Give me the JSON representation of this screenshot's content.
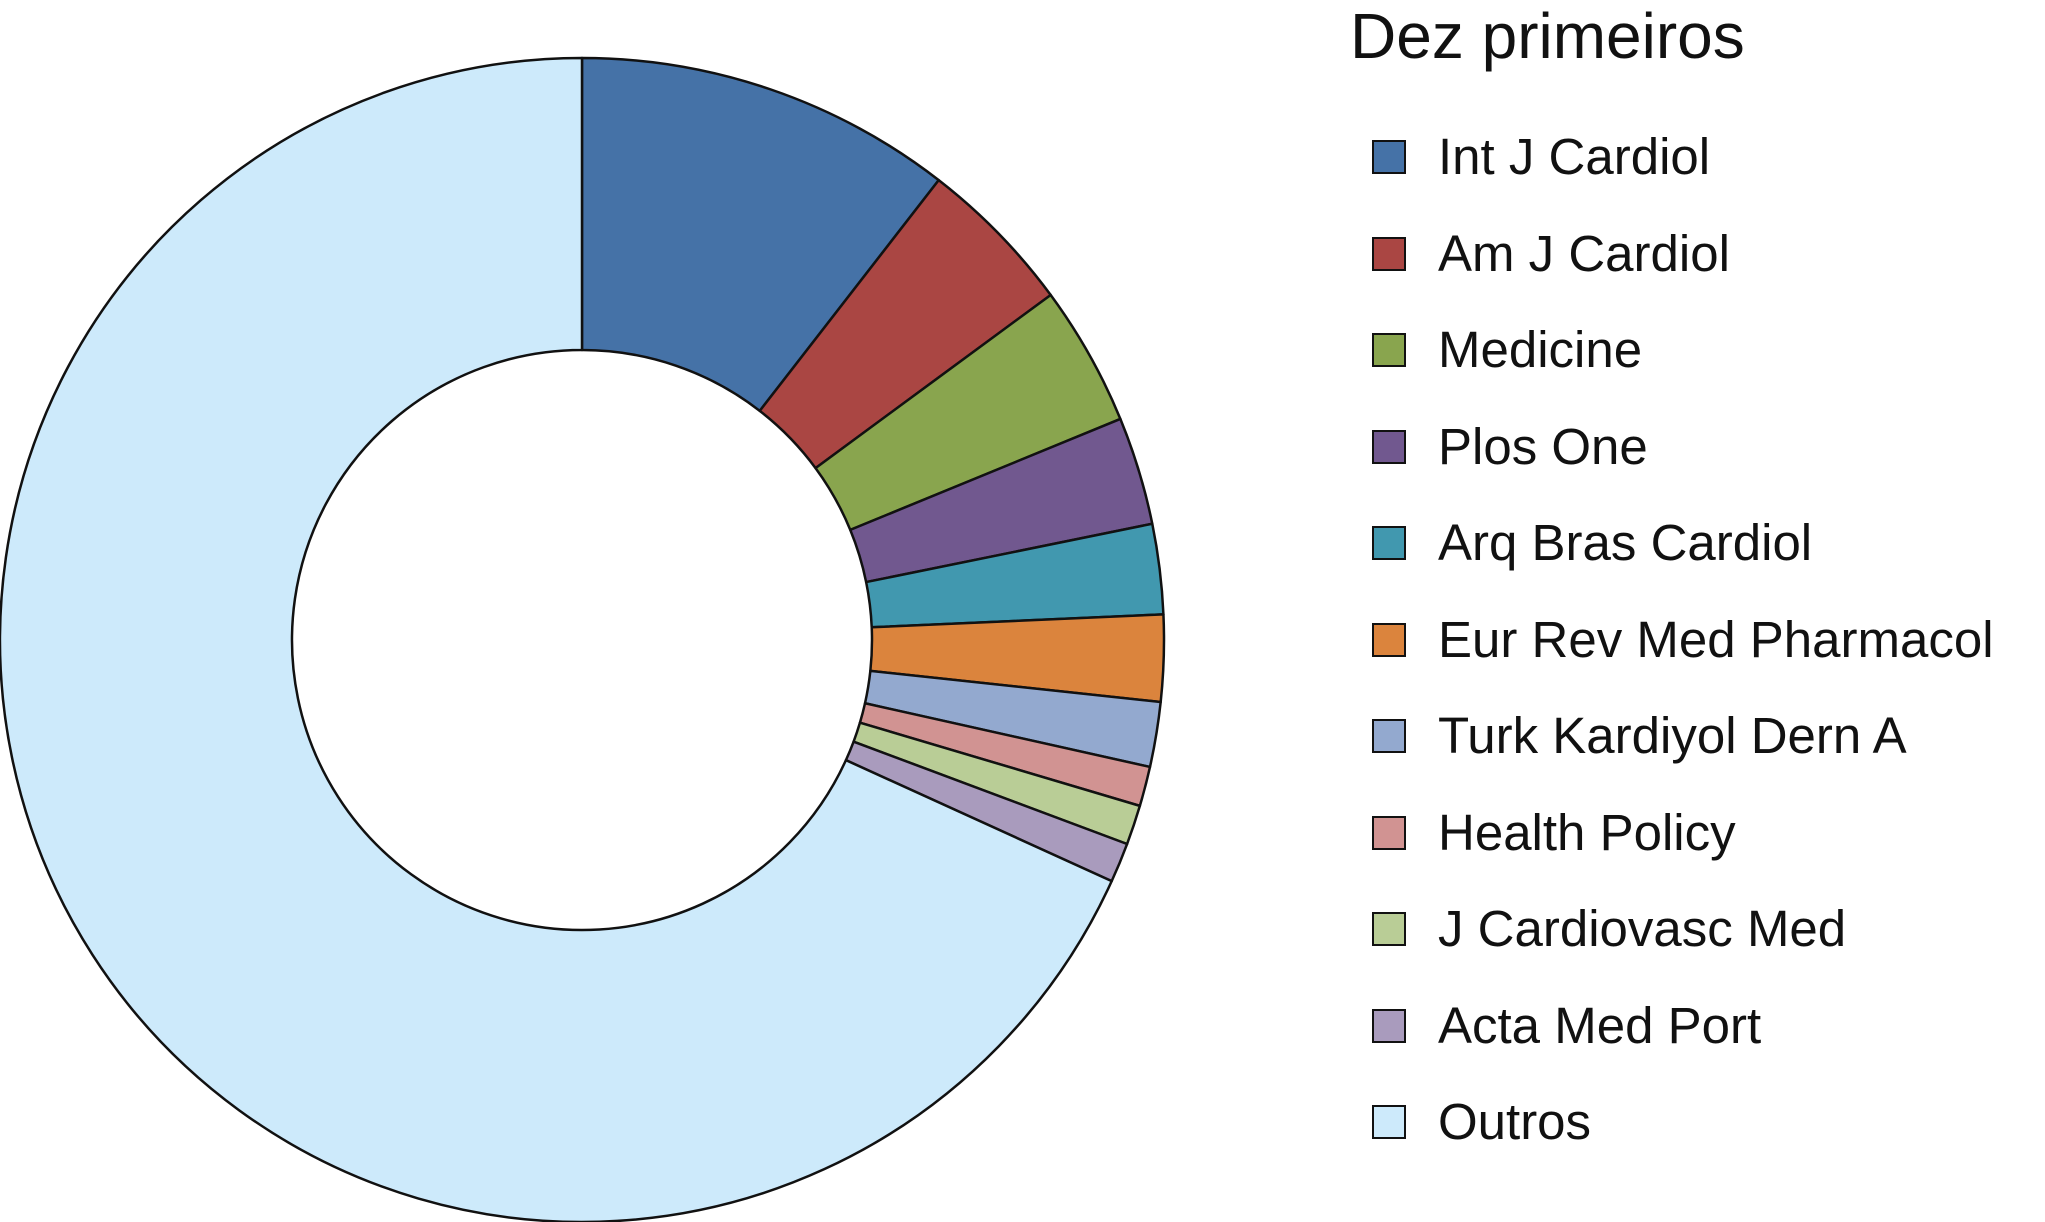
{
  "chart_data": {
    "type": "pie",
    "style": "donut",
    "title": "Dez primeiros",
    "legend_position": "right",
    "labels": [
      "Int J Cardiol",
      "Am J Cardiol",
      "Medicine",
      "Plos One",
      "Arq Bras Cardiol",
      "Eur Rev Med Pharmacol",
      "Turk Kardiyol Dern A",
      "Health Policy",
      "J Cardiovasc Med",
      "Acta Med Port",
      "Outros"
    ],
    "values": [
      10.5,
      4.4,
      3.9,
      3.0,
      2.5,
      2.4,
      1.8,
      1.1,
      1.1,
      1.1,
      68.2
    ],
    "colors": [
      "#4572a7",
      "#aa4643",
      "#89a54e",
      "#71588f",
      "#4198af",
      "#db843d",
      "#93a9cf",
      "#d19392",
      "#b9cd96",
      "#a99bbd",
      "#cdeafb"
    ],
    "start_angle_deg": 0,
    "direction": "clockwise",
    "stroke_color": "#111111"
  }
}
